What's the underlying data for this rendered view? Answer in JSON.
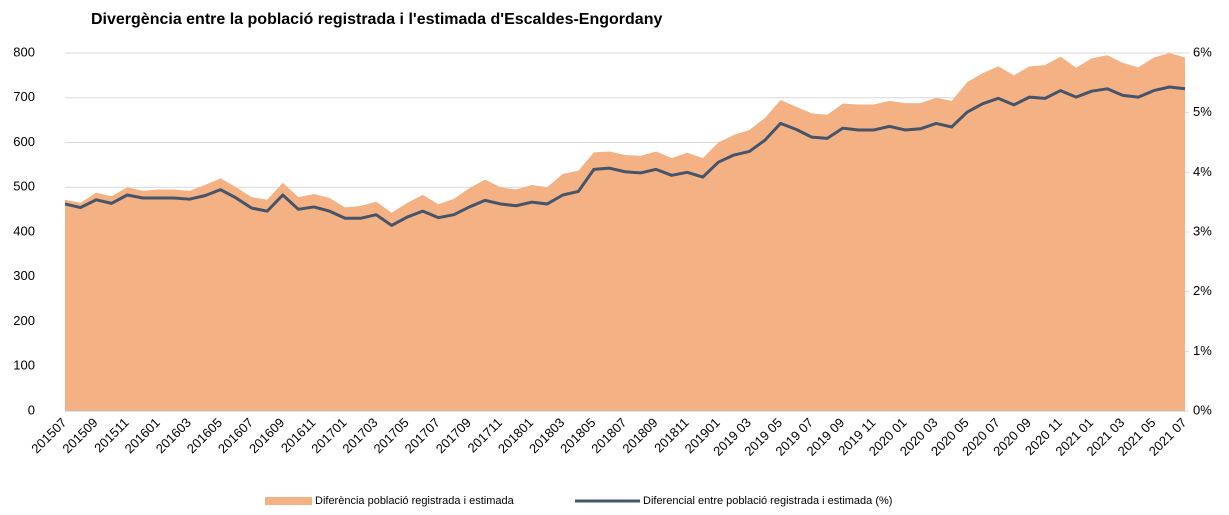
{
  "chart_data": {
    "type": "area",
    "title": "Divergència entre la població registrada i l'estimada d'Escaldes-Engordany",
    "categories": [
      "201507",
      null,
      "201509",
      null,
      "201511",
      null,
      "201601",
      null,
      "201603",
      null,
      "201605",
      null,
      "201607",
      null,
      "201609",
      null,
      "201611",
      null,
      "201701",
      null,
      "201703",
      null,
      "201705",
      null,
      "201707",
      null,
      "201709",
      null,
      "201711",
      null,
      "201801",
      null,
      "201803",
      null,
      "201805",
      null,
      "201807",
      null,
      "201809",
      null,
      "201811",
      null,
      "201901",
      null,
      "2019 03",
      null,
      "2019 05",
      null,
      "2019 07",
      null,
      "2019 09",
      null,
      "2019 11",
      null,
      "2020 01",
      null,
      "2020 03",
      null,
      "2020 05",
      null,
      "2020 07",
      null,
      "2020 09",
      null,
      "2020 11",
      null,
      "2021 01",
      null,
      "2021 03",
      null,
      "2021 05",
      null,
      "2021 07"
    ],
    "series": [
      {
        "name": "Diferència població registrada i estimada",
        "type": "area",
        "color": "#f4b183",
        "values": [
          472,
          465,
          488,
          480,
          500,
          492,
          495,
          495,
          492,
          505,
          520,
          500,
          478,
          472,
          510,
          478,
          485,
          476,
          455,
          458,
          468,
          443,
          465,
          483,
          462,
          474,
          498,
          517,
          500,
          495,
          505,
          500,
          530,
          537,
          578,
          580,
          572,
          570,
          580,
          565,
          577,
          565,
          600,
          617,
          628,
          655,
          695,
          680,
          665,
          662,
          687,
          685,
          685,
          693,
          688,
          688,
          700,
          693,
          735,
          755,
          770,
          750,
          770,
          773,
          792,
          767,
          788,
          795,
          778,
          768,
          790,
          800,
          790
        ]
      },
      {
        "name": "Diferencial entre població registrada i estimada (%)",
        "type": "line",
        "color": "#44546a",
        "axis": "y2",
        "values": [
          3.47,
          3.41,
          3.54,
          3.48,
          3.62,
          3.57,
          3.57,
          3.57,
          3.55,
          3.61,
          3.71,
          3.57,
          3.4,
          3.35,
          3.62,
          3.38,
          3.42,
          3.35,
          3.23,
          3.23,
          3.29,
          3.11,
          3.25,
          3.35,
          3.24,
          3.29,
          3.42,
          3.53,
          3.47,
          3.44,
          3.5,
          3.47,
          3.62,
          3.68,
          4.05,
          4.07,
          4.01,
          3.99,
          4.05,
          3.95,
          4.0,
          3.92,
          4.17,
          4.29,
          4.35,
          4.54,
          4.82,
          4.72,
          4.59,
          4.57,
          4.74,
          4.71,
          4.71,
          4.77,
          4.71,
          4.73,
          4.82,
          4.76,
          5.01,
          5.15,
          5.24,
          5.13,
          5.26,
          5.24,
          5.37,
          5.26,
          5.36,
          5.4,
          5.29,
          5.26,
          5.37,
          5.43,
          5.4
        ]
      }
    ],
    "ylim": [
      0,
      800
    ],
    "yticks": [
      0,
      100,
      200,
      300,
      400,
      500,
      600,
      700,
      800
    ],
    "y2lim": [
      0,
      6
    ],
    "y2ticks": [
      {
        "value": 0,
        "label": "0%"
      },
      {
        "value": 1,
        "label": "1%"
      },
      {
        "value": 2,
        "label": "2%"
      },
      {
        "value": 3,
        "label": "3%"
      },
      {
        "value": 4,
        "label": "4%"
      },
      {
        "value": 5,
        "label": "5%"
      },
      {
        "value": 6,
        "label": "6%"
      }
    ],
    "grid": true,
    "legend": "bottom"
  }
}
